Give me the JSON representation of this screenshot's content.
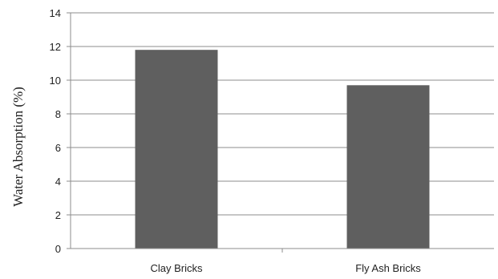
{
  "chart_data": {
    "type": "bar",
    "categories": [
      "Clay Bricks",
      "Fly Ash Bricks"
    ],
    "values": [
      11.8,
      9.7
    ],
    "title": "",
    "xlabel": "",
    "ylabel": "Water  Absorption (%)",
    "ylim": [
      0,
      14
    ],
    "yticks": [
      "0",
      "2",
      "4",
      "6",
      "8",
      "10",
      "12",
      "14"
    ],
    "grid": true,
    "legend": "none",
    "colors": {
      "bar": "#5f5f5f",
      "grid": "#8c8c8c",
      "axis": "#8c8c8c"
    }
  }
}
